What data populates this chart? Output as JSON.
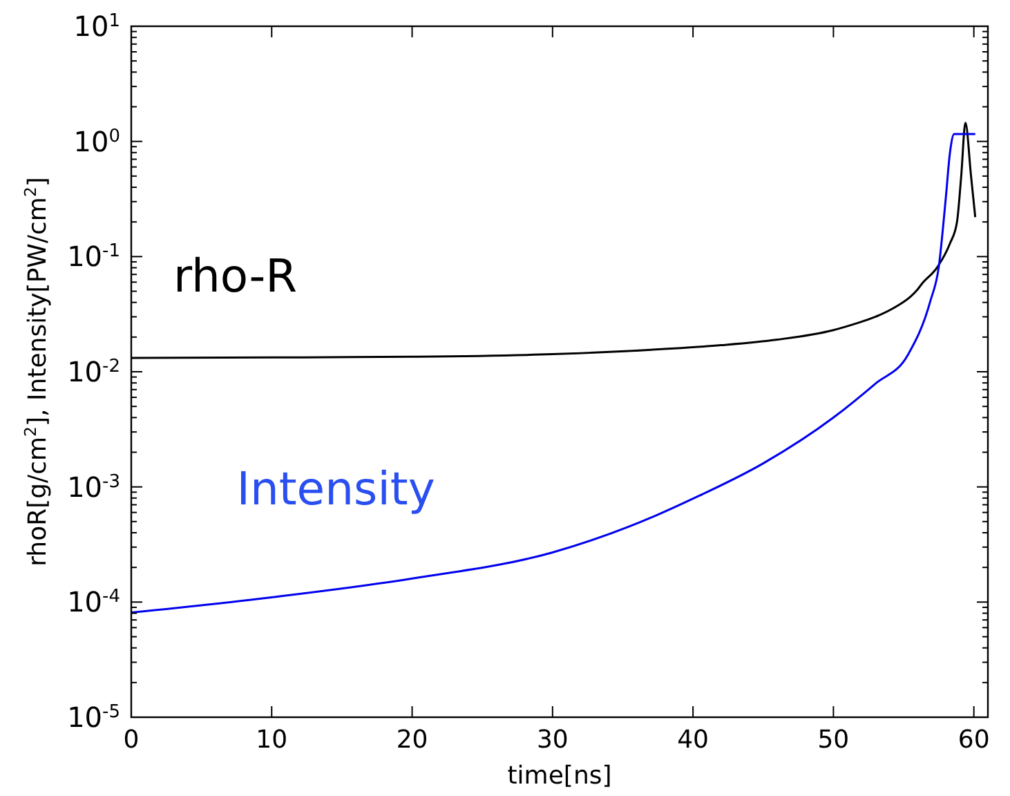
{
  "chart_data": {
    "type": "line",
    "xlabel": "time[ns]",
    "ylabel": "rhoR[g/cm$^{2}$], Intensity[PW/cm$^{2}$]",
    "log": "y",
    "grid": false,
    "marker": "none",
    "line_style": "solid",
    "xlim": [
      0,
      61
    ],
    "xticks": [
      0,
      10,
      20,
      30,
      40,
      50,
      60
    ],
    "ylim": [
      1e-05,
      10
    ],
    "yticks": [
      {
        "value": 1e-05,
        "label": "10$^{-5}$"
      },
      {
        "value": 0.0001,
        "label": "10$^{-4}$"
      },
      {
        "value": 0.001,
        "label": "10$^{-3}$"
      },
      {
        "value": 0.01,
        "label": "10$^{-2}$"
      },
      {
        "value": 0.1,
        "label": "10$^{-1}$"
      },
      {
        "value": 1,
        "label": "10$^{0}$"
      },
      {
        "value": 10,
        "label": "10$^{1}$"
      },
      {
        "value": 2e-05,
        "label": null
      },
      {
        "value": 3e-05,
        "label": null
      },
      {
        "value": 4e-05,
        "label": null
      },
      {
        "value": 5e-05,
        "label": null
      },
      {
        "value": 6e-05,
        "label": null
      },
      {
        "value": 7e-05,
        "label": null
      },
      {
        "value": 8e-05,
        "label": null
      },
      {
        "value": 9e-05,
        "label": null
      },
      {
        "value": 0.0002,
        "label": null
      },
      {
        "value": 0.0003,
        "label": null
      },
      {
        "value": 0.0004,
        "label": null
      },
      {
        "value": 0.0005,
        "label": null
      },
      {
        "value": 0.0006,
        "label": null
      },
      {
        "value": 0.0007,
        "label": null
      },
      {
        "value": 0.0008,
        "label": null
      },
      {
        "value": 0.0009,
        "label": null
      },
      {
        "value": 0.002,
        "label": null
      },
      {
        "value": 0.003,
        "label": null
      },
      {
        "value": 0.004,
        "label": null
      },
      {
        "value": 0.005,
        "label": null
      },
      {
        "value": 0.006,
        "label": null
      },
      {
        "value": 0.007,
        "label": null
      },
      {
        "value": 0.008,
        "label": null
      },
      {
        "value": 0.009,
        "label": null
      },
      {
        "value": 0.02,
        "label": null
      },
      {
        "value": 0.03,
        "label": null
      },
      {
        "value": 0.04,
        "label": null
      },
      {
        "value": 0.05,
        "label": null
      },
      {
        "value": 0.06,
        "label": null
      },
      {
        "value": 0.07,
        "label": null
      },
      {
        "value": 0.08,
        "label": null
      },
      {
        "value": 0.09,
        "label": null
      },
      {
        "value": 0.2,
        "label": null
      },
      {
        "value": 0.3,
        "label": null
      },
      {
        "value": 0.4,
        "label": null
      },
      {
        "value": 0.5,
        "label": null
      },
      {
        "value": 0.6,
        "label": null
      },
      {
        "value": 0.7,
        "label": null
      },
      {
        "value": 0.8,
        "label": null
      },
      {
        "value": 0.9,
        "label": null
      },
      {
        "value": 2,
        "label": null
      },
      {
        "value": 3,
        "label": null
      },
      {
        "value": 4,
        "label": null
      },
      {
        "value": 5,
        "label": null
      },
      {
        "value": 6,
        "label": null
      },
      {
        "value": 7,
        "label": null
      },
      {
        "value": 8,
        "label": null
      },
      {
        "value": 9,
        "label": null
      }
    ],
    "series": [
      {
        "name": "rho-R",
        "color": "#000000",
        "x": [
          0,
          10,
          20,
          30,
          37,
          42,
          46,
          50,
          51.5,
          53,
          54.5,
          55.5,
          56,
          56.3,
          57.4,
          58.3,
          58.8,
          59.1,
          59.4,
          59.8,
          60.1
        ],
        "values": [
          0.0132,
          0.0133,
          0.0135,
          0.0142,
          0.0155,
          0.017,
          0.019,
          0.023,
          0.026,
          0.03,
          0.037,
          0.045,
          0.052,
          0.058,
          0.081,
          0.13,
          0.2,
          0.5,
          1.45,
          0.5,
          0.22
        ]
      },
      {
        "name": "Intensity",
        "color": "#0000ee",
        "x": [
          0,
          10,
          20,
          30,
          37.3,
          40,
          45,
          50,
          53,
          55.3,
          56.9,
          57.5,
          58,
          58.3,
          58.6,
          60.1
        ],
        "values": [
          8.1e-05,
          0.00011,
          0.00016,
          0.00027,
          0.00056,
          0.00079,
          0.0016,
          0.004,
          0.0079,
          0.014,
          0.041,
          0.081,
          0.32,
          0.8,
          1.16,
          1.16
        ]
      }
    ]
  }
}
